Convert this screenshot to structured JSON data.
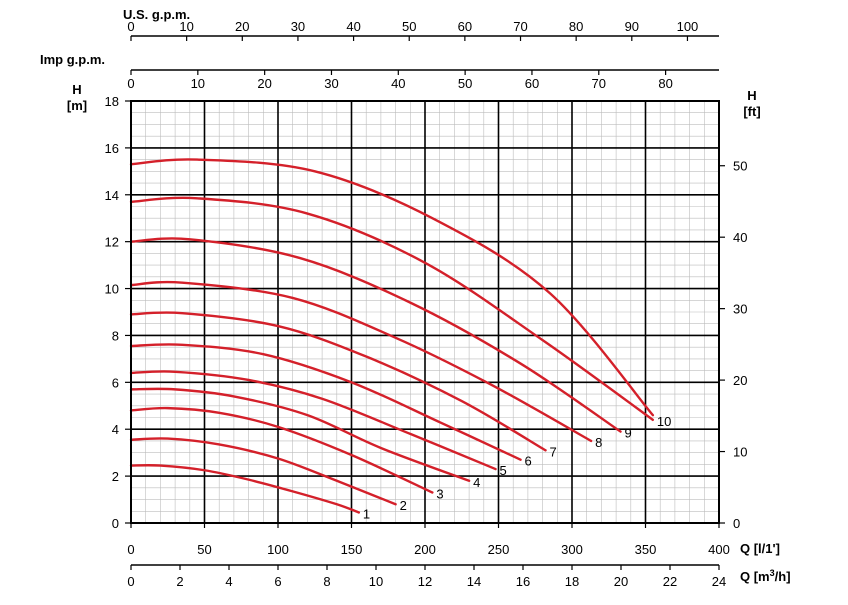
{
  "chart_data": {
    "type": "line",
    "title": "",
    "grid": true,
    "color": "#d4202a",
    "x": {
      "label": "Q [l/1']",
      "lim": [
        0,
        400
      ],
      "ticks": [
        0,
        50,
        100,
        150,
        200,
        250,
        300,
        350,
        400
      ]
    },
    "x_m3h": {
      "label": "Q [m",
      "label_sup": "3",
      "label_tail": "/h]",
      "lim": [
        0,
        24
      ],
      "ticks": [
        0,
        2,
        4,
        6,
        8,
        10,
        12,
        14,
        16,
        18,
        20,
        22,
        24
      ]
    },
    "x_usgpm": {
      "label": "U.S. g.p.m.",
      "lim": [
        0,
        105.67
      ],
      "ticks": [
        0,
        10,
        20,
        30,
        40,
        50,
        60,
        70,
        80,
        90,
        100
      ]
    },
    "x_impgpm": {
      "label": "Imp g.p.m.",
      "lim": [
        0,
        87.99
      ],
      "ticks": [
        0,
        10,
        20,
        30,
        40,
        50,
        60,
        70,
        80
      ]
    },
    "y": {
      "label_line1": "H",
      "label_line2": "[m]",
      "lim": [
        0,
        18
      ],
      "ticks": [
        0,
        2,
        4,
        6,
        8,
        10,
        12,
        14,
        16,
        18
      ]
    },
    "y_ft": {
      "label_line1": "H",
      "label_line2": "[ft]",
      "lim": [
        0,
        59.06
      ],
      "ticks": [
        0,
        10,
        20,
        30,
        40,
        50
      ]
    },
    "series": [
      {
        "name": "1",
        "points": [
          [
            0,
            2.45
          ],
          [
            20,
            2.45
          ],
          [
            50,
            2.25
          ],
          [
            80,
            1.85
          ],
          [
            110,
            1.35
          ],
          [
            140,
            0.8
          ],
          [
            155,
            0.45
          ]
        ]
      },
      {
        "name": "2",
        "points": [
          [
            0,
            3.55
          ],
          [
            25,
            3.6
          ],
          [
            60,
            3.35
          ],
          [
            100,
            2.75
          ],
          [
            140,
            1.8
          ],
          [
            180,
            0.8
          ]
        ]
      },
      {
        "name": "3",
        "points": [
          [
            0,
            4.8
          ],
          [
            25,
            4.9
          ],
          [
            60,
            4.7
          ],
          [
            100,
            4.1
          ],
          [
            150,
            2.9
          ],
          [
            205,
            1.3
          ]
        ]
      },
      {
        "name": "4",
        "points": [
          [
            0,
            5.7
          ],
          [
            30,
            5.7
          ],
          [
            70,
            5.4
          ],
          [
            120,
            4.6
          ],
          [
            170,
            3.2
          ],
          [
            230,
            1.8
          ]
        ]
      },
      {
        "name": "5",
        "points": [
          [
            0,
            6.4
          ],
          [
            30,
            6.45
          ],
          [
            80,
            6.1
          ],
          [
            130,
            5.3
          ],
          [
            190,
            3.8
          ],
          [
            248,
            2.3
          ]
        ]
      },
      {
        "name": "6",
        "points": [
          [
            0,
            7.55
          ],
          [
            35,
            7.6
          ],
          [
            90,
            7.2
          ],
          [
            150,
            6.0
          ],
          [
            210,
            4.3
          ],
          [
            265,
            2.7
          ]
        ]
      },
      {
        "name": "7",
        "points": [
          [
            0,
            8.9
          ],
          [
            35,
            8.95
          ],
          [
            100,
            8.4
          ],
          [
            160,
            7.1
          ],
          [
            225,
            5.2
          ],
          [
            282,
            3.1
          ]
        ]
      },
      {
        "name": "8",
        "points": [
          [
            0,
            10.15
          ],
          [
            35,
            10.25
          ],
          [
            110,
            9.6
          ],
          [
            180,
            7.9
          ],
          [
            245,
            5.9
          ],
          [
            313,
            3.5
          ]
        ]
      },
      {
        "name": "9",
        "points": [
          [
            0,
            12.0
          ],
          [
            40,
            12.1
          ],
          [
            115,
            11.3
          ],
          [
            190,
            9.4
          ],
          [
            265,
            6.8
          ],
          [
            333,
            3.9
          ]
        ]
      },
      {
        "name": "10",
        "points": [
          [
            0,
            13.7
          ],
          [
            45,
            13.85
          ],
          [
            120,
            13.2
          ],
          [
            200,
            11.1
          ],
          [
            280,
            7.8
          ],
          [
            355,
            4.4
          ]
        ]
      },
      {
        "name": "",
        "points": [
          [
            0,
            15.3
          ],
          [
            45,
            15.5
          ],
          [
            125,
            15.0
          ],
          [
            205,
            13.0
          ],
          [
            285,
            9.8
          ],
          [
            355,
            4.6
          ]
        ]
      }
    ]
  }
}
